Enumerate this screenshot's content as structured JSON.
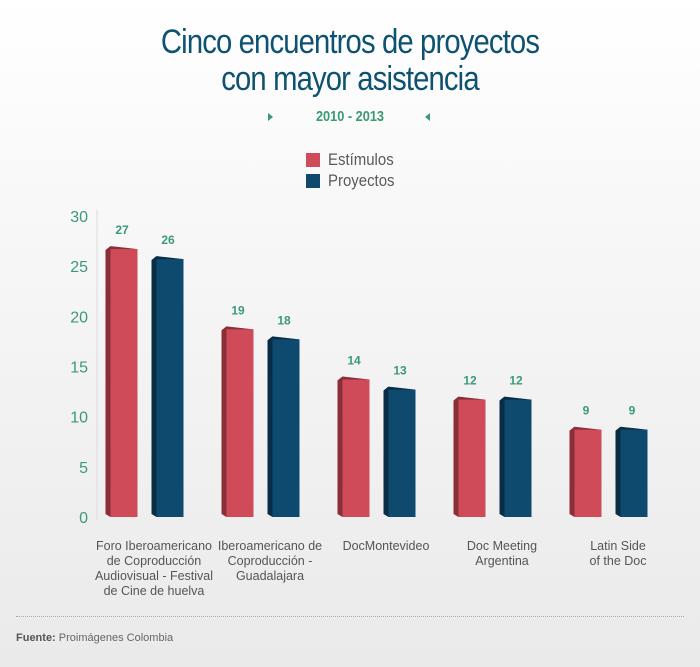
{
  "title_line1": "Cinco encuentros de proyectos",
  "title_line2": "con mayor asistencia",
  "subtitle": "2010 - 2013",
  "source_label": "Fuente:",
  "source_text": "Proimágenes Colombia",
  "colors": {
    "estimulos": "#cf4b5a",
    "estimulos_side": "#8a2e38",
    "proyectos": "#0e4a6e",
    "proyectos_side": "#082d44",
    "value_label": "#3a9a74",
    "axis_label": "#3a9a74",
    "title": "#0e5272"
  },
  "chart_data": {
    "type": "bar",
    "title": "Cinco encuentros de proyectos con mayor asistencia",
    "subtitle": "2010 - 2013",
    "categories": [
      "Foro Iberoamericano de Coproducción Audiovisual - Festival de Cine de huelva",
      "Iberoamericano de Coproducción - Guadalajara",
      "DocMontevideo",
      "Doc Meeting Argentina",
      "Latin Side of the Doc"
    ],
    "category_lines": [
      [
        "Foro Iberoamericano",
        "de Coproducción",
        "Audiovisual - Festival",
        "de Cine de huelva"
      ],
      [
        "Iberoamericano de",
        "Coproducción -",
        "Guadalajara"
      ],
      [
        "DocMontevideo"
      ],
      [
        "Doc Meeting",
        "Argentina"
      ],
      [
        "Latin Side",
        "of the Doc"
      ]
    ],
    "series": [
      {
        "name": "Estímulos",
        "values": [
          27,
          19,
          14,
          12,
          9
        ]
      },
      {
        "name": "Proyectos",
        "values": [
          26,
          18,
          13,
          12,
          9
        ]
      }
    ],
    "yticks": [
      0,
      5,
      10,
      15,
      20,
      25,
      30
    ],
    "ylim": [
      0,
      30
    ],
    "legend_position": "top-center",
    "grid": false
  }
}
